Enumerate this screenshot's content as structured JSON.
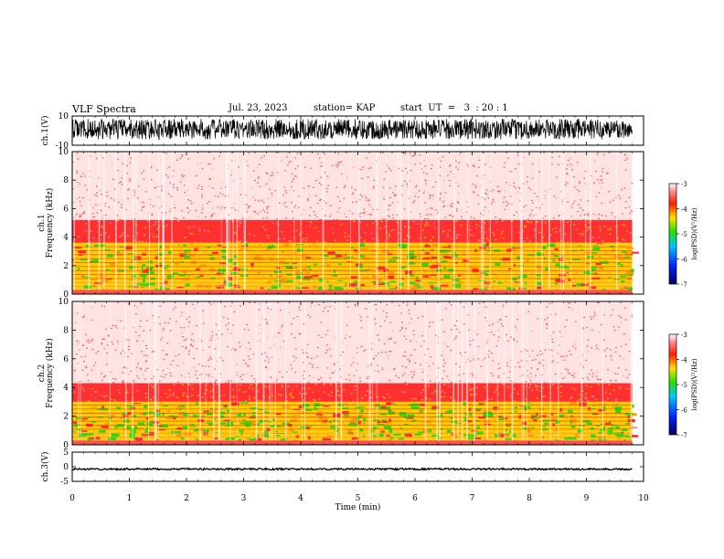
{
  "header": {
    "title": "VLF Spectra",
    "date": "Jul. 23, 2023",
    "station": "station= KAP",
    "start": "start  UT  =   3  : 20 : 1"
  },
  "colors": {
    "spectrogram_low": "#2a55ff",
    "spectrogram_mid": "#22e000",
    "spectrogram_high": "#ff1e1e",
    "background": "#ffffff",
    "trace": "#000000"
  },
  "chart_data": [
    {
      "type": "line",
      "panel": "ch1-waveform",
      "ylabel": "ch.1(V)",
      "ylim": [
        -10,
        10
      ],
      "yticks": [
        "10",
        "-10"
      ],
      "x_range_min": [
        0,
        9.8
      ],
      "description_values": {
        "typical_amplitude_V": [
          -6,
          8
        ]
      }
    },
    {
      "type": "heatmap",
      "panel": "ch1-spectrogram",
      "ylabel": "ch.1\nFrequency (kHz)",
      "ylim": [
        0,
        10
      ],
      "yticks": [
        "0",
        "2",
        "4",
        "6",
        "8",
        "10"
      ],
      "x_range_min": [
        0,
        9.8
      ],
      "colorbar": {
        "label": "log(PSD)(V²/Hz)",
        "range": [
          -7,
          -3
        ],
        "ticks": [
          "-3",
          "-4",
          "-5",
          "-6",
          "-7"
        ]
      },
      "bands_kHz": {
        "strong_green": [
          0.3,
          3.6
        ],
        "red": [
          3.6,
          5.2
        ],
        "sparse_red": [
          5.2,
          10
        ]
      }
    },
    {
      "type": "heatmap",
      "panel": "ch2-spectrogram",
      "ylabel": "ch.2\nFrequency (kHz)",
      "ylim": [
        0,
        10
      ],
      "yticks": [
        "0",
        "2",
        "4",
        "6",
        "8",
        "10"
      ],
      "x_range_min": [
        0,
        9.8
      ],
      "colorbar": {
        "label": "log(PSD)(V²/Hz)",
        "range": [
          -7,
          -3
        ],
        "ticks": [
          "-3",
          "-4",
          "-5",
          "-6",
          "-7"
        ]
      },
      "bands_kHz": {
        "strong_green": [
          0.3,
          3.0
        ],
        "red": [
          3.0,
          4.3
        ],
        "sparse_red": [
          4.3,
          10
        ]
      }
    },
    {
      "type": "line",
      "panel": "ch3-waveform",
      "ylabel": "ch.3(V)",
      "ylim": [
        -5,
        5
      ],
      "yticks": [
        "5",
        "0",
        "-5"
      ],
      "x_range_min": [
        0,
        9.8
      ],
      "description_values": {
        "typical_amplitude_V": [
          -1.1,
          -0.5
        ]
      }
    }
  ],
  "xaxis": {
    "label": "Time (min)",
    "range": [
      0,
      10
    ],
    "ticks": [
      "0",
      "1",
      "2",
      "3",
      "4",
      "5",
      "6",
      "7",
      "8",
      "9",
      "10"
    ]
  }
}
